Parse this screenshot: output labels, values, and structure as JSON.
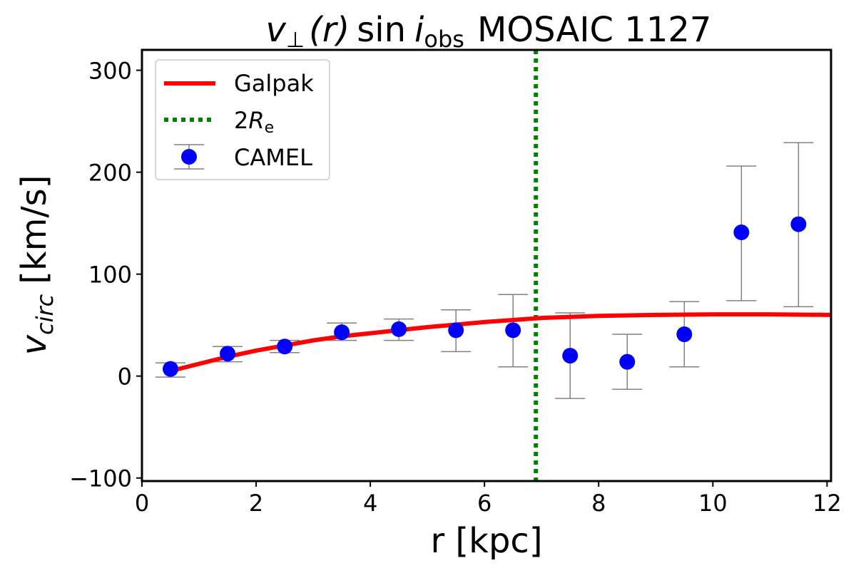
{
  "chart_data": {
    "type": "scatter",
    "title_parts": {
      "v": "v",
      "perp": "⊥",
      "r": "(r)",
      "sin": "sin",
      "i": "i",
      "obs": "obs",
      "rest": "MOSAIC 1127"
    },
    "xlabel": "r [kpc]",
    "ylabel_parts": {
      "v": "v",
      "sub": "circ",
      "unit": "[km/s]"
    },
    "xlim": [
      0,
      12.07
    ],
    "ylim": [
      -103,
      320
    ],
    "xticks": [
      0,
      2,
      4,
      6,
      8,
      10,
      12
    ],
    "yticks": [
      -100,
      0,
      100,
      200,
      300
    ],
    "grid": false,
    "legend_position": "top-left",
    "legend": {
      "galpak": "Galpak",
      "re_prefix": "2",
      "re_main": "R",
      "re_sub": "e",
      "camel": "CAMEL"
    },
    "galpak": {
      "color": "#ff0000",
      "x": [
        0.5,
        1,
        1.5,
        2,
        2.5,
        3,
        3.5,
        4,
        5,
        6,
        7,
        8,
        9,
        10,
        11,
        12.07
      ],
      "y": [
        5,
        12,
        19,
        25,
        30,
        35,
        39,
        42,
        48,
        53,
        57,
        59,
        60,
        60.5,
        60.5,
        60
      ]
    },
    "two_re": {
      "color": "#008000",
      "x": 6.9
    },
    "camel": {
      "color": "#0000ff",
      "errorbar_color": "#808080",
      "x": [
        0.5,
        1.5,
        2.5,
        3.5,
        4.5,
        5.5,
        6.5,
        7.5,
        8.5,
        9.5,
        10.5,
        11.5
      ],
      "y": [
        7,
        22,
        29,
        43,
        46,
        45,
        45,
        20,
        14,
        41,
        141,
        149
      ],
      "y_upper": [
        13,
        29,
        35,
        52,
        56,
        65,
        80,
        62,
        41,
        73,
        206,
        229
      ],
      "y_lower": [
        -1,
        14,
        23,
        35,
        35,
        24,
        9,
        -22,
        -13,
        9,
        74,
        68
      ]
    }
  }
}
